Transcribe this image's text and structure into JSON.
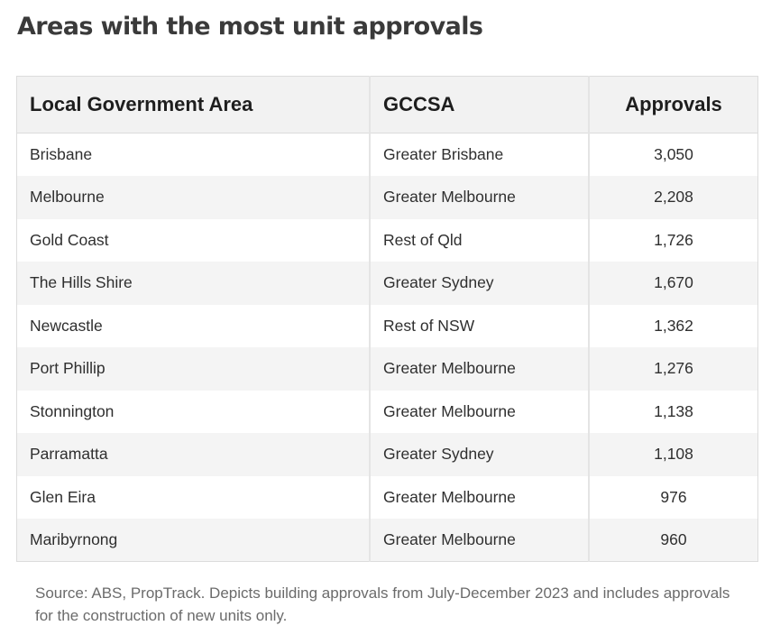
{
  "title": "Areas with the most unit approvals",
  "table": {
    "headers": [
      "Local Government Area",
      "GCCSA",
      "Approvals"
    ],
    "rows": [
      [
        "Brisbane",
        "Greater Brisbane",
        "3,050"
      ],
      [
        "Melbourne",
        "Greater Melbourne",
        "2,208"
      ],
      [
        "Gold Coast",
        "Rest of Qld",
        "1,726"
      ],
      [
        "The Hills Shire",
        "Greater Sydney",
        "1,670"
      ],
      [
        "Newcastle",
        "Rest of NSW",
        "1,362"
      ],
      [
        "Port Phillip",
        "Greater Melbourne",
        "1,276"
      ],
      [
        "Stonnington",
        "Greater Melbourne",
        "1,138"
      ],
      [
        "Parramatta",
        "Greater Sydney",
        "1,108"
      ],
      [
        "Glen Eira",
        "Greater Melbourne",
        "976"
      ],
      [
        "Maribyrnong",
        "Greater Melbourne",
        "960"
      ]
    ]
  },
  "source": "Source: ABS, PropTrack. Depicts building approvals from July-December 2023 and includes approvals for the construction of new units only."
}
